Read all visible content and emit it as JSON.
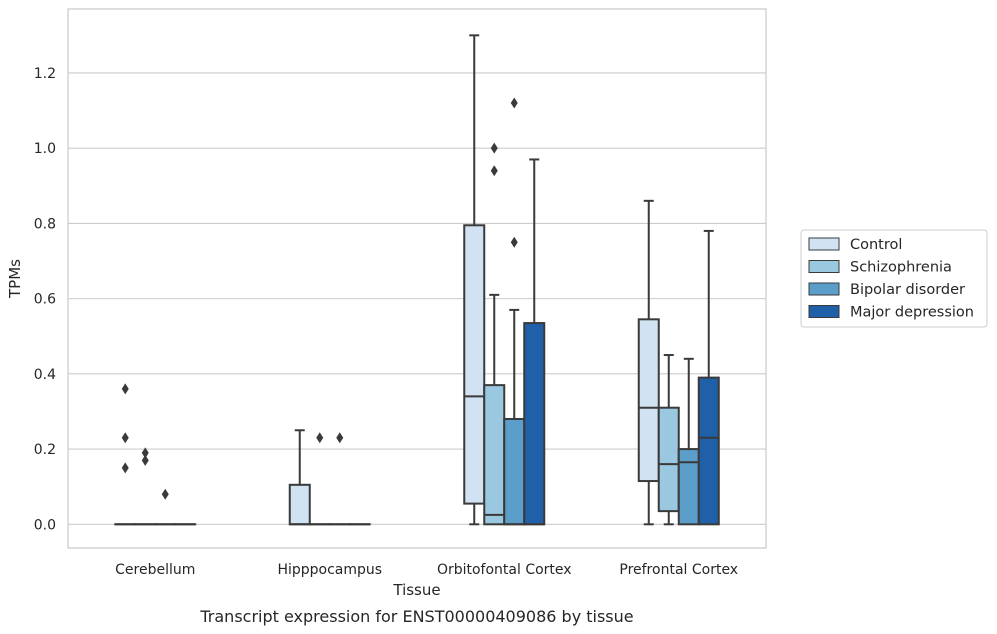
{
  "caption": "Transcript expression for ENST00000409086 by tissue",
  "chart_data": {
    "type": "box",
    "xlabel": "Tissue",
    "ylabel": "TPMs",
    "ylim": [
      -0.063,
      1.37
    ],
    "yticks": [
      0.0,
      0.2,
      0.4,
      0.6,
      0.8,
      1.0,
      1.2
    ],
    "ytick_labels": [
      "0.0",
      "0.2",
      "0.4",
      "0.6",
      "0.8",
      "1.0",
      "1.2"
    ],
    "grid": "horizontal",
    "legend_position": "right",
    "categories": [
      "Cerebellum",
      "Hipppocampus",
      "Orbitofontal Cortex",
      "Prefrontal Cortex"
    ],
    "series": [
      {
        "name": "Control",
        "color": "#d1e2f2",
        "boxes": [
          {
            "q1": 0,
            "median": 0,
            "q3": 0,
            "whislo": 0,
            "whishi": 0,
            "fliers": [
              0.36,
              0.23,
              0.15
            ]
          },
          {
            "q1": 0,
            "median": 0,
            "q3": 0.105,
            "whislo": 0,
            "whishi": 0.25,
            "fliers": []
          },
          {
            "q1": 0.055,
            "median": 0.34,
            "q3": 0.795,
            "whislo": 0,
            "whishi": 1.3,
            "fliers": []
          },
          {
            "q1": 0.115,
            "median": 0.31,
            "q3": 0.545,
            "whislo": 0,
            "whishi": 0.86,
            "fliers": []
          }
        ]
      },
      {
        "name": "Schizophrenia",
        "color": "#9ac8e0",
        "boxes": [
          {
            "q1": 0,
            "median": 0,
            "q3": 0,
            "whislo": 0,
            "whishi": 0,
            "fliers": [
              0.19,
              0.17
            ]
          },
          {
            "q1": 0,
            "median": 0,
            "q3": 0,
            "whislo": 0,
            "whishi": 0,
            "fliers": [
              0.23
            ]
          },
          {
            "q1": 0,
            "median": 0.025,
            "q3": 0.37,
            "whislo": 0,
            "whishi": 0.61,
            "fliers": [
              1.0,
              0.94
            ]
          },
          {
            "q1": 0.035,
            "median": 0.16,
            "q3": 0.31,
            "whislo": 0,
            "whishi": 0.45,
            "fliers": []
          }
        ]
      },
      {
        "name": "Bipolar disorder",
        "color": "#5a9ec9",
        "boxes": [
          {
            "q1": 0,
            "median": 0,
            "q3": 0,
            "whislo": 0,
            "whishi": 0,
            "fliers": [
              0.08
            ]
          },
          {
            "q1": 0,
            "median": 0,
            "q3": 0,
            "whislo": 0,
            "whishi": 0,
            "fliers": [
              0.23
            ]
          },
          {
            "q1": 0,
            "median": 0,
            "q3": 0.28,
            "whislo": 0,
            "whishi": 0.57,
            "fliers": [
              1.12,
              0.75
            ]
          },
          {
            "q1": 0,
            "median": 0.165,
            "q3": 0.2,
            "whislo": 0,
            "whishi": 0.44,
            "fliers": []
          }
        ]
      },
      {
        "name": "Major depression",
        "color": "#2060a8",
        "boxes": [
          {
            "q1": 0,
            "median": 0,
            "q3": 0,
            "whislo": 0,
            "whishi": 0,
            "fliers": []
          },
          {
            "q1": 0,
            "median": 0,
            "q3": 0,
            "whislo": 0,
            "whishi": 0,
            "fliers": []
          },
          {
            "q1": 0,
            "median": 0,
            "q3": 0.535,
            "whislo": 0,
            "whishi": 0.97,
            "fliers": []
          },
          {
            "q1": 0,
            "median": 0.23,
            "q3": 0.39,
            "whislo": 0,
            "whishi": 0.78,
            "fliers": []
          }
        ]
      }
    ]
  }
}
